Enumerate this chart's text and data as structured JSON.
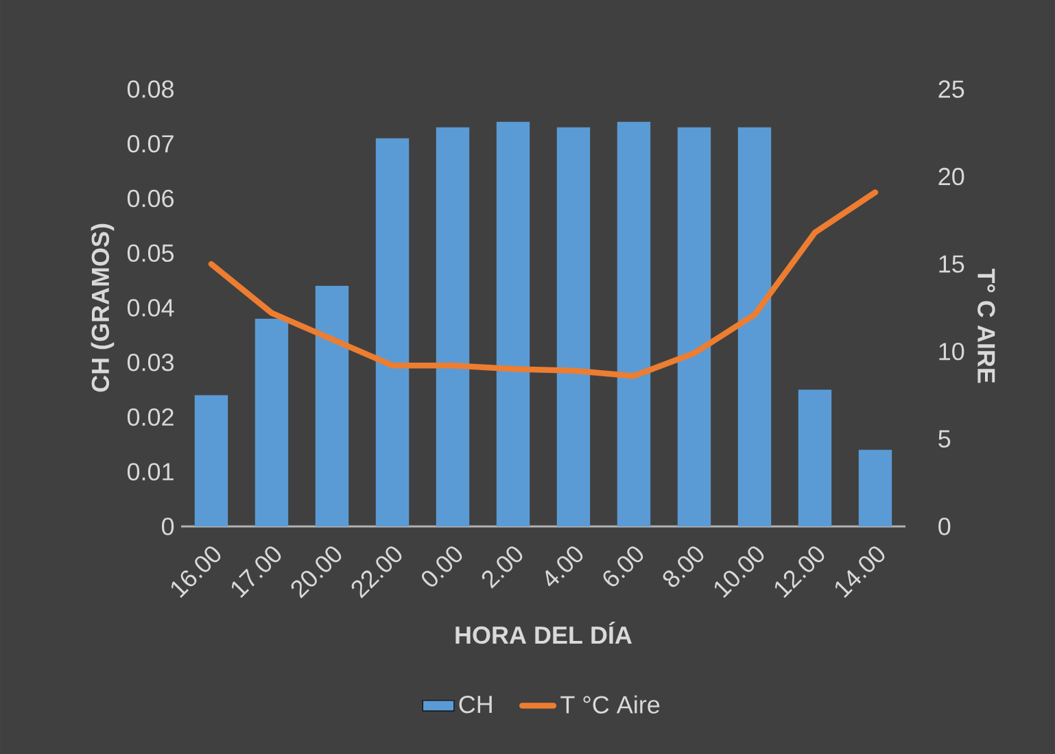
{
  "chart_data": {
    "type": "bar",
    "categories": [
      "16.00",
      "17.00",
      "20.00",
      "22.00",
      "0.00",
      "2.00",
      "4.00",
      "6.00",
      "8.00",
      "10.00",
      "12.00",
      "14.00"
    ],
    "xlabel": "HORA DEL DÍA",
    "ylabel": "CH (GRAMOS)",
    "y2label": "T° C AIRE",
    "ylim": [
      0,
      0.08
    ],
    "yticks": [
      0,
      0.01,
      0.02,
      0.03,
      0.04,
      0.05,
      0.06,
      0.07,
      0.08
    ],
    "y2lim": [
      0,
      25
    ],
    "y2ticks": [
      0,
      5,
      10,
      15,
      20,
      25
    ],
    "legend": "bottom",
    "series": [
      {
        "name": "CH",
        "color": "#5b9bd5",
        "values": [
          0.024,
          0.038,
          0.044,
          0.071,
          0.073,
          0.074,
          0.073,
          0.074,
          0.073,
          0.073,
          0.025,
          0.014
        ]
      },
      {
        "name": "T °C Aire",
        "type": "line",
        "axis": "y2",
        "color": "#ed7d31",
        "values": [
          15.0,
          12.2,
          10.7,
          9.2,
          9.2,
          9.0,
          8.9,
          8.6,
          9.9,
          12.1,
          16.8,
          19.1
        ]
      }
    ]
  }
}
